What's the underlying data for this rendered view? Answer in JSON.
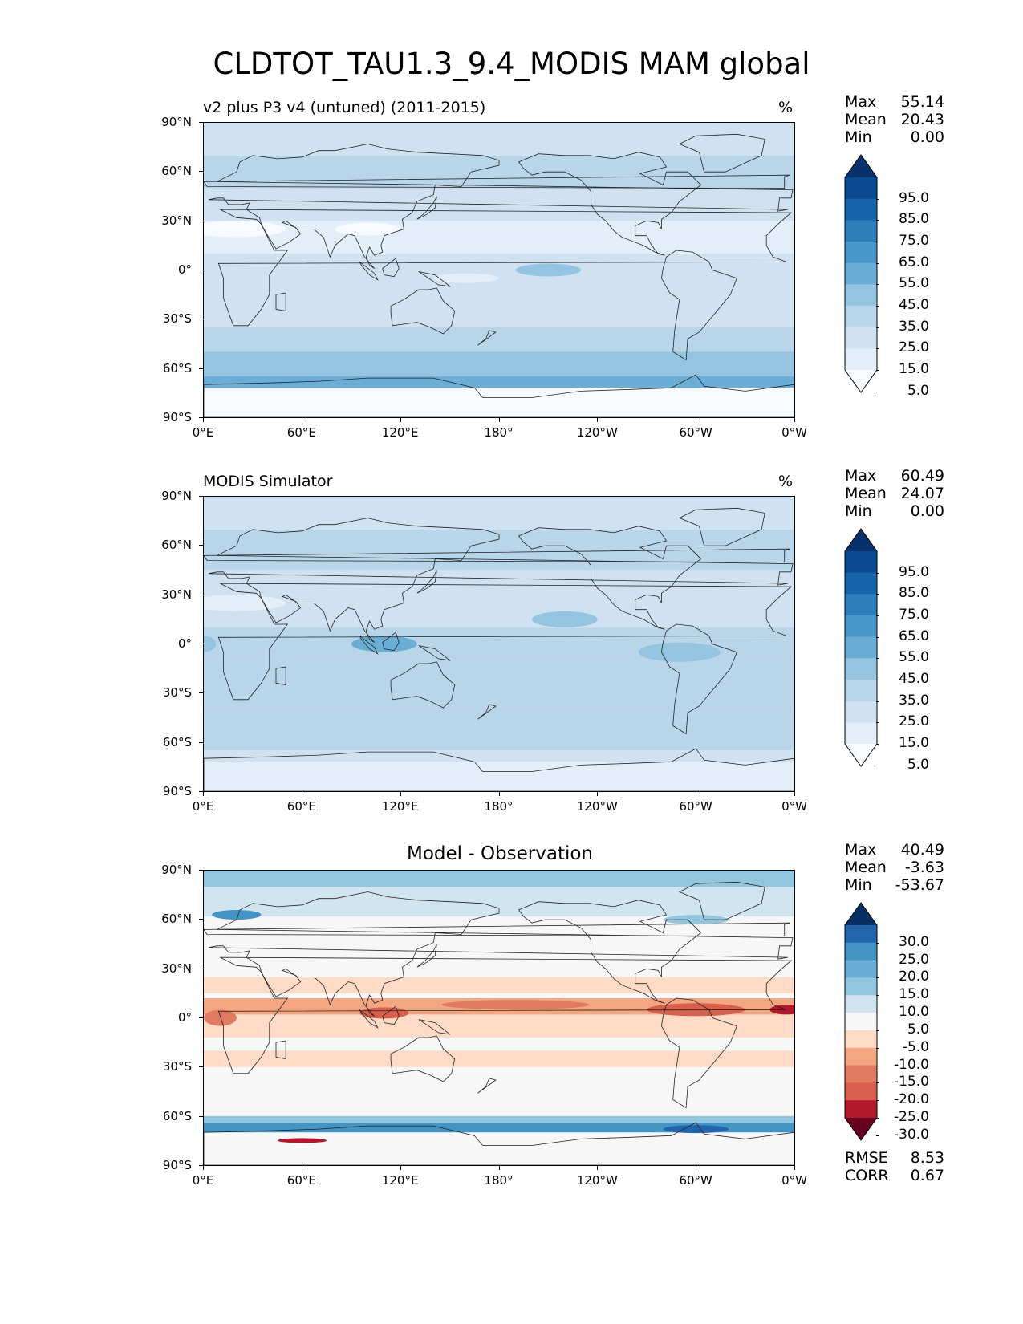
{
  "title": "CLDTOT_TAU1.3_9.4_MODIS MAM global",
  "x_ticks": [
    "0°E",
    "60°E",
    "120°E",
    "180°",
    "120°W",
    "60°W",
    "0°W"
  ],
  "y_ticks": [
    "90°N",
    "60°N",
    "30°N",
    "0°",
    "30°S",
    "60°S",
    "90°S"
  ],
  "panels": [
    {
      "left_title": "v2 plus P3 v4 (untuned) (2011-2015)",
      "units": "%",
      "stats": {
        "max_label": "Max",
        "max": "55.14",
        "mean_label": "Mean",
        "mean": "20.43",
        "min_label": "Min",
        "min": "0.00"
      },
      "colorbar": {
        "labels": [
          "95.0",
          "85.0",
          "75.0",
          "65.0",
          "55.0",
          "45.0",
          "35.0",
          "25.0",
          "15.0",
          "5.0"
        ],
        "colors": [
          "#08306b",
          "#0a4a90",
          "#1764ab",
          "#2e7ebc",
          "#4a98c9",
          "#6aaed6",
          "#94c4df",
          "#b8d5ea",
          "#d0e1f2",
          "#e3eef9",
          "#f7fbff"
        ]
      }
    },
    {
      "left_title": "MODIS Simulator",
      "units": "%",
      "stats": {
        "max_label": "Max",
        "max": "60.49",
        "mean_label": "Mean",
        "mean": "24.07",
        "min_label": "Min",
        "min": "0.00"
      },
      "colorbar": {
        "labels": [
          "95.0",
          "85.0",
          "75.0",
          "65.0",
          "55.0",
          "45.0",
          "35.0",
          "25.0",
          "15.0",
          "5.0"
        ],
        "colors": [
          "#08306b",
          "#0a4a90",
          "#1764ab",
          "#2e7ebc",
          "#4a98c9",
          "#6aaed6",
          "#94c4df",
          "#b8d5ea",
          "#d0e1f2",
          "#e3eef9",
          "#f7fbff"
        ]
      }
    },
    {
      "center_title": "Model - Observation",
      "stats": {
        "max_label": "Max",
        "max": "40.49",
        "mean_label": "Mean",
        "mean": "-3.63",
        "min_label": "Min",
        "min": "-53.67"
      },
      "extra_stats": {
        "rmse_label": "RMSE",
        "rmse": "8.53",
        "corr_label": "CORR",
        "corr": "0.67"
      },
      "colorbar": {
        "labels": [
          "30.0",
          "25.0",
          "20.0",
          "15.0",
          "10.0",
          "5.0",
          "-5.0",
          "-10.0",
          "-15.0",
          "-20.0",
          "-25.0",
          "-30.0"
        ],
        "colors": [
          "#053061",
          "#2166ac",
          "#4393c3",
          "#6aaed6",
          "#92c5de",
          "#d1e5f0",
          "#f7f7f7",
          "#fddbc7",
          "#f4a582",
          "#e07b62",
          "#d6604d",
          "#b2182b",
          "#67001f"
        ]
      }
    }
  ]
}
